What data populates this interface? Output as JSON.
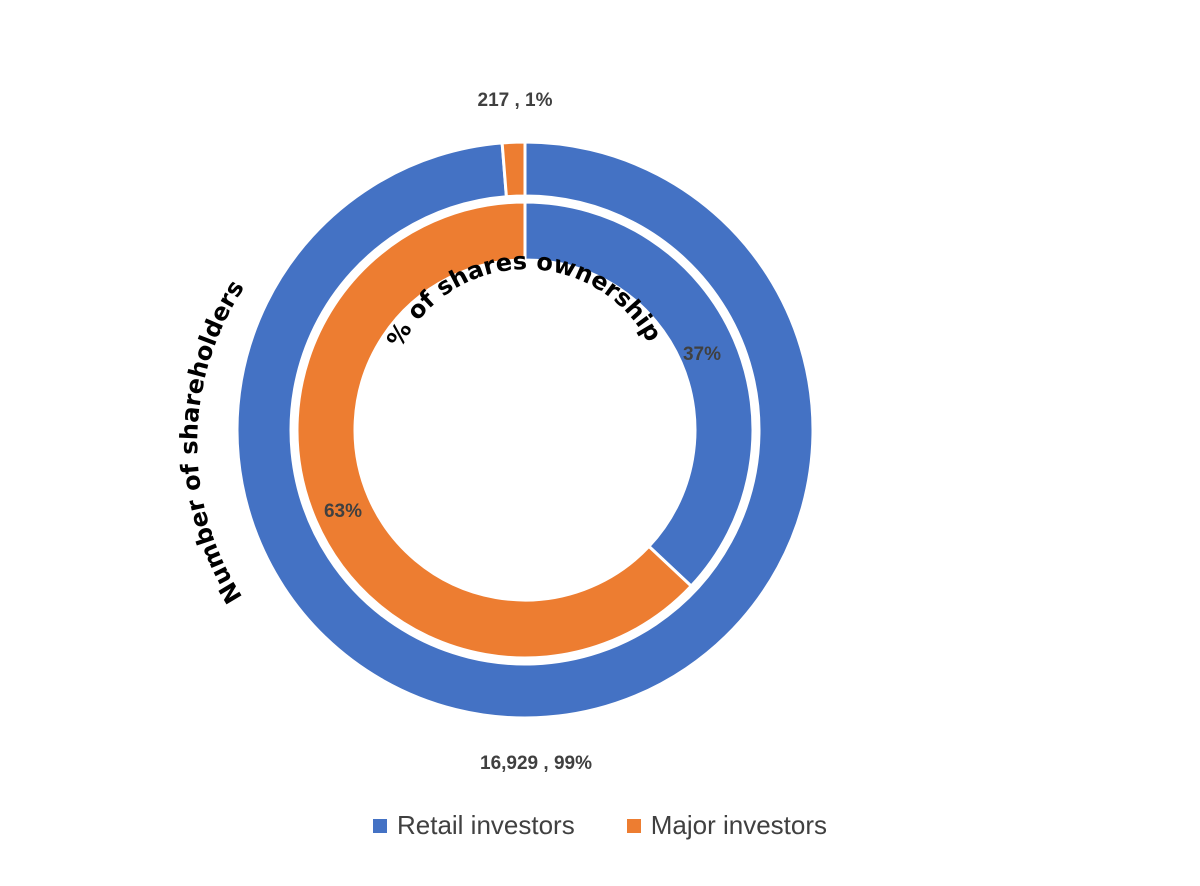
{
  "chart_data": {
    "type": "pie",
    "subtype": "double-doughnut",
    "legend_position": "bottom",
    "categories": [
      "Retail investors",
      "Major investors"
    ],
    "colors": [
      "#4472C4",
      "#ED7D31"
    ],
    "rings": [
      {
        "position": "outer",
        "title": "Number of shareholders",
        "values": [
          16929,
          217
        ],
        "percents": [
          99,
          1
        ],
        "labels": [
          "16,929 , 99%",
          "217 , 1%"
        ]
      },
      {
        "position": "inner",
        "title": "% of shares ownership",
        "values": [
          37,
          63
        ],
        "labels": [
          "37%",
          "63%"
        ]
      }
    ]
  }
}
